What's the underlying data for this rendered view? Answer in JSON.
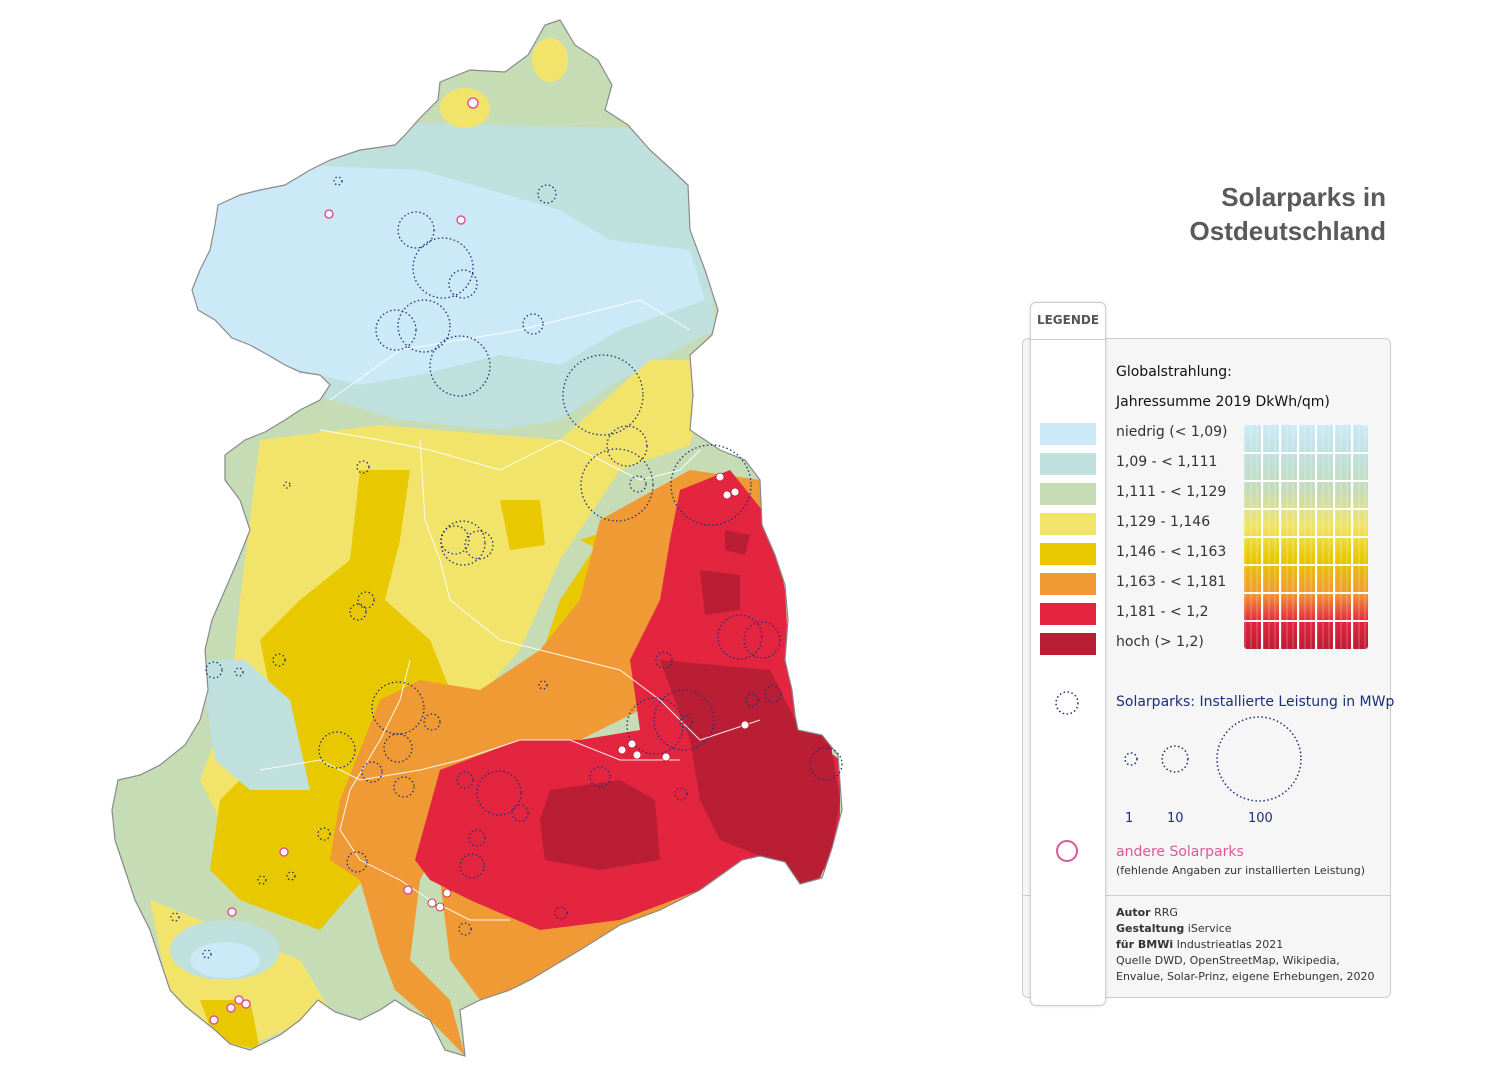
{
  "title": {
    "line1": "Solarparks in",
    "line2": "Ostdeutschland"
  },
  "legend": {
    "tab_label": "LEGENDE",
    "heading1": "Globalstrahlung:",
    "heading2": "Jahressumme 2019 DkWh/qm)",
    "classes": [
      {
        "label": "niedrig (< 1,09)",
        "color": "#cce9f7"
      },
      {
        "label": "1,09 - < 1,111",
        "color": "#bfe0dc"
      },
      {
        "label": "1,111 - < 1,129",
        "color": "#c6dcb5"
      },
      {
        "label": "1,129 - 1,146",
        "color": "#f2e46a"
      },
      {
        "label": "1,146 - < 1,163",
        "color": "#e8c800"
      },
      {
        "label": "1,163 - < 1,181",
        "color": "#f09a36"
      },
      {
        "label": "1,181 - < 1,2",
        "color": "#e4253f"
      },
      {
        "label": "hoch (> 1,2)",
        "color": "#b91e34"
      }
    ],
    "solarparks_label": "Solarparks: Installierte Leistung in MWp",
    "sizes": [
      "1",
      "10",
      "100"
    ],
    "andere_label": "andere Solarparks",
    "andere_note": "(fehlende Angaben zur installierten Leistung)",
    "credits": [
      {
        "key": "Autor",
        "value": " RRG"
      },
      {
        "key": "Gestaltung",
        "value": " iService"
      },
      {
        "key": "für BMWi",
        "value": " Industrieatlas 2021"
      },
      {
        "key": "",
        "value": "Quelle DWD, OpenStreetMap, Wikipedia,"
      },
      {
        "key": "",
        "value": "Envalue, Solar-Prinz, eigene Erhebungen, 2020"
      }
    ]
  },
  "colors": {
    "blue": "#1b2f7a",
    "pink": "#e0559a"
  }
}
